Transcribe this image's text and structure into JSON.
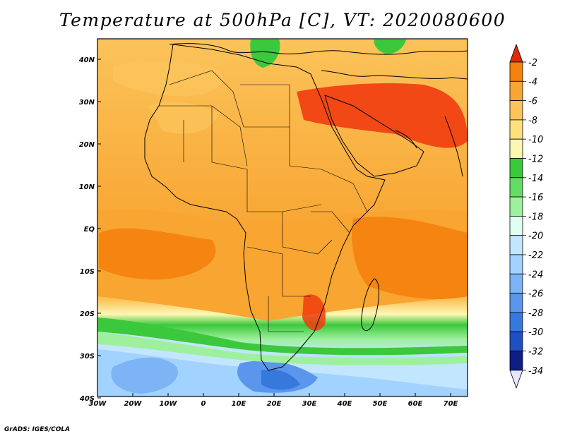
{
  "title": "Temperature at 500hPa [C], VT: 2020080600",
  "credit": "GrADS: IGES/COLA",
  "lon_labels": [
    "30W",
    "20W",
    "10W",
    "0",
    "10E",
    "20E",
    "30E",
    "40E",
    "50E",
    "60E",
    "70E"
  ],
  "lat_labels": [
    "40N",
    "30N",
    "20N",
    "10N",
    "EQ",
    "10S",
    "20S",
    "30S",
    "40S"
  ],
  "colorbar": {
    "labels": [
      "-2",
      "-4",
      "-6",
      "-8",
      "-10",
      "-12",
      "-14",
      "-16",
      "-18",
      "-20",
      "-22",
      "-24",
      "-26",
      "-28",
      "-30",
      "-32",
      "-34"
    ],
    "colors": [
      "#f03c0f",
      "#f5820f",
      "#f8a532",
      "#fbc35a",
      "#fce17d",
      "#fef7b4",
      "#3cc83c",
      "#64dc64",
      "#9ef09e",
      "#e1fff0",
      "#c3e6ff",
      "#a2d2ff",
      "#7cb4f5",
      "#5a96eb",
      "#3778dc",
      "#1e50c3",
      "#0f1e82"
    ],
    "top_arrow_color": "#e1280a",
    "bottom_arrow_color": "#e6e6ff"
  }
}
